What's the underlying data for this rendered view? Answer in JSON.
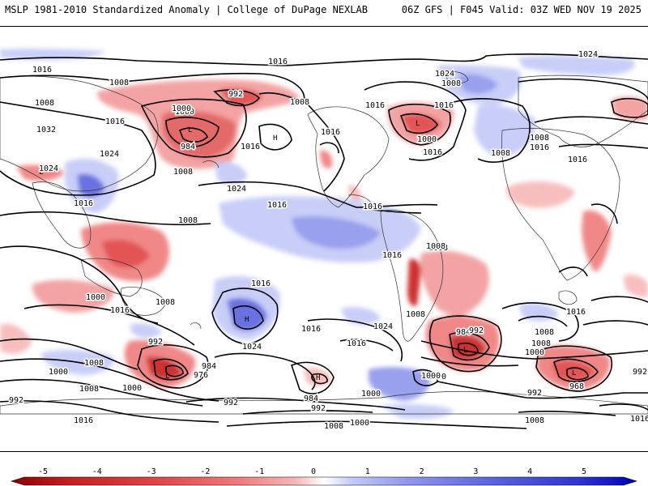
{
  "header": {
    "left_text": "MSLP 1981-2010 Standardized Anomaly | College of DuPage NEXLAB",
    "right_text": "06Z GFS | F045 Valid: 03Z WED NOV 19 2025"
  },
  "map": {
    "variable": "Mean Sea Level Pressure",
    "contour_unit": "hPa",
    "contour_labels": [
      "1016",
      "1008",
      "1008",
      "1032",
      "1016",
      "1024",
      "1024",
      "1016",
      "1000",
      "992",
      "984",
      "1000",
      "1016",
      "1008",
      "1024",
      "1016",
      "1008",
      "1016",
      "1016",
      "1016",
      "1008",
      "1000",
      "1016",
      "1024",
      "1024",
      "1008",
      "1016",
      "1016",
      "1008",
      "1016",
      "1008",
      "1016",
      "1008",
      "1008",
      "1016",
      "1016",
      "1024",
      "1016",
      "1008",
      "1016",
      "1008",
      "1000",
      "1008",
      "1000",
      "992",
      "992",
      "984",
      "976",
      "1000",
      "992",
      "984",
      "992",
      "1000",
      "1008",
      "1024",
      "1008",
      "1016",
      "1008",
      "984",
      "992",
      "1000",
      "1000",
      "1016",
      "1008",
      "1000",
      "968",
      "992",
      "992",
      "1016",
      "1000",
      "1008",
      "1016"
    ]
  },
  "colorbar": {
    "ticks": [
      "-5",
      "-4",
      "-3",
      "-2",
      "-1",
      "0",
      "1",
      "2",
      "3",
      "4",
      "5"
    ],
    "colors": [
      "#8b0000",
      "#c81e1e",
      "#e04343",
      "#ef7b7b",
      "#f7b7b7",
      "#ffffff",
      "#c3c9f7",
      "#8e96ec",
      "#5a62de",
      "#2e34d2",
      "#0000b8"
    ]
  }
}
